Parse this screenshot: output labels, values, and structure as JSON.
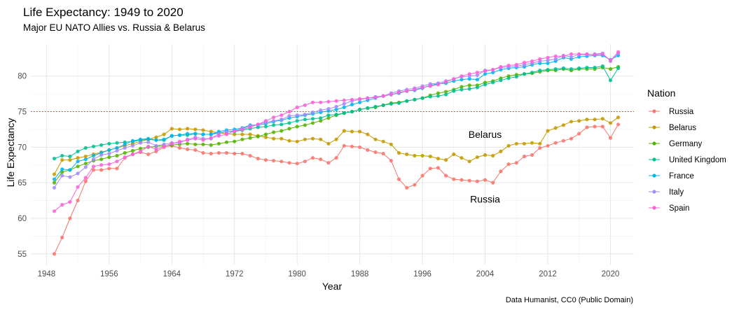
{
  "chart_data": {
    "type": "line",
    "title": "Life Expectancy: 1949 to 2020",
    "subtitle": "Major EU NATO Allies vs. Russia & Belarus",
    "xlabel": "Year",
    "ylabel": "Life Expectancy",
    "caption": "Data Humanist, CC0 (Public Domain)",
    "xlim": [
      1946,
      2023
    ],
    "ylim": [
      53.5,
      84.5
    ],
    "x_ticks": [
      1948,
      1956,
      1964,
      1972,
      1980,
      1988,
      1996,
      2004,
      2012,
      2020
    ],
    "y_ticks": [
      55,
      60,
      65,
      70,
      75,
      80
    ],
    "reference_line": {
      "y": 75,
      "style": "dotted",
      "color": "#c0392b"
    },
    "grid": true,
    "legend": {
      "title": "Nation",
      "placement": "right"
    },
    "annotations": [
      {
        "text": "Belarus",
        "x": 2004,
        "y": 71.8
      },
      {
        "text": "Russia",
        "x": 2004,
        "y": 62.7
      }
    ],
    "x": [
      1949,
      1950,
      1951,
      1952,
      1953,
      1954,
      1955,
      1956,
      1957,
      1958,
      1959,
      1960,
      1961,
      1962,
      1963,
      1964,
      1965,
      1966,
      1967,
      1968,
      1969,
      1970,
      1971,
      1972,
      1973,
      1974,
      1975,
      1976,
      1977,
      1978,
      1979,
      1980,
      1981,
      1982,
      1983,
      1984,
      1985,
      1986,
      1987,
      1988,
      1989,
      1990,
      1991,
      1992,
      1993,
      1994,
      1995,
      1996,
      1997,
      1998,
      1999,
      2000,
      2001,
      2002,
      2003,
      2004,
      2005,
      2006,
      2007,
      2008,
      2009,
      2010,
      2011,
      2012,
      2013,
      2014,
      2015,
      2016,
      2017,
      2018,
      2019,
      2020,
      2021
    ],
    "series": [
      {
        "name": "Russia",
        "color": "#F8766D",
        "values": [
          55.0,
          57.3,
          60.0,
          62.5,
          65.2,
          66.8,
          66.8,
          67.0,
          67.0,
          68.5,
          69.0,
          69.3,
          69.0,
          69.4,
          70.0,
          70.2,
          69.9,
          69.7,
          69.6,
          69.2,
          69.1,
          69.2,
          69.2,
          69.1,
          69.1,
          68.8,
          68.4,
          68.2,
          68.1,
          68.0,
          67.8,
          67.7,
          68.0,
          68.5,
          68.3,
          67.8,
          68.5,
          70.2,
          70.1,
          70.0,
          69.6,
          69.3,
          69.1,
          68.1,
          65.5,
          64.3,
          64.7,
          66.0,
          67.0,
          67.1,
          66.0,
          65.5,
          65.4,
          65.3,
          65.2,
          65.4,
          65.0,
          66.6,
          67.6,
          67.8,
          68.7,
          68.9,
          69.9,
          70.2,
          70.6,
          70.9,
          71.2,
          71.9,
          72.8,
          72.9,
          72.9,
          71.3,
          73.2
        ]
      },
      {
        "name": "Belarus",
        "color": "#C49A00",
        "values": [
          66.2,
          68.2,
          68.2,
          68.5,
          68.7,
          69.0,
          69.3,
          69.6,
          69.9,
          70.2,
          70.5,
          70.8,
          71.1,
          71.4,
          71.8,
          72.6,
          72.5,
          72.6,
          72.5,
          72.4,
          72.2,
          72.0,
          71.9,
          71.8,
          71.8,
          71.8,
          71.6,
          71.4,
          71.2,
          71.2,
          70.9,
          70.8,
          71.1,
          71.2,
          71.1,
          70.5,
          71.1,
          72.3,
          72.2,
          72.2,
          71.8,
          71.1,
          70.8,
          70.4,
          69.2,
          69.0,
          68.8,
          68.8,
          68.7,
          68.4,
          68.2,
          69.0,
          68.5,
          68.0,
          68.6,
          68.9,
          68.8,
          69.4,
          70.2,
          70.5,
          70.5,
          70.6,
          70.5,
          72.3,
          72.7,
          73.1,
          73.6,
          73.7,
          73.9,
          73.9,
          74.0,
          73.4,
          74.2
        ]
      },
      {
        "name": "Germany",
        "color": "#53B400",
        "values": [
          65.0,
          66.5,
          66.8,
          67.3,
          67.7,
          68.1,
          68.3,
          68.6,
          68.8,
          69.2,
          69.5,
          69.8,
          70.0,
          70.1,
          70.2,
          70.3,
          70.4,
          70.5,
          70.4,
          70.4,
          70.3,
          70.5,
          70.7,
          70.8,
          71.1,
          71.3,
          71.5,
          71.8,
          72.1,
          72.3,
          72.6,
          72.9,
          73.1,
          73.4,
          73.7,
          74.1,
          74.5,
          74.8,
          75.0,
          75.3,
          75.5,
          75.6,
          75.9,
          76.2,
          76.3,
          76.5,
          76.7,
          76.9,
          77.3,
          77.6,
          77.8,
          78.1,
          78.5,
          78.7,
          78.7,
          79.1,
          79.3,
          79.7,
          80.0,
          80.2,
          80.3,
          80.4,
          80.6,
          80.8,
          80.8,
          81.0,
          80.8,
          81.0,
          81.0,
          81.0,
          81.2,
          81.0,
          81.3
        ]
      },
      {
        "name": "United Kingdom",
        "color": "#00C094",
        "values": [
          68.4,
          68.8,
          68.7,
          69.4,
          69.9,
          70.1,
          70.3,
          70.5,
          70.6,
          70.7,
          70.8,
          71.0,
          71.1,
          71.0,
          71.0,
          71.6,
          71.7,
          71.7,
          71.9,
          71.8,
          71.8,
          72.0,
          72.2,
          72.2,
          72.4,
          72.6,
          72.8,
          72.9,
          73.1,
          73.2,
          73.4,
          73.7,
          73.9,
          74.0,
          74.1,
          74.5,
          74.6,
          74.8,
          75.0,
          75.3,
          75.5,
          75.7,
          75.9,
          76.1,
          76.2,
          76.5,
          76.7,
          76.9,
          77.1,
          77.2,
          77.4,
          77.9,
          78.1,
          78.2,
          78.4,
          78.8,
          79.1,
          79.4,
          79.7,
          79.9,
          80.3,
          80.5,
          80.8,
          80.9,
          81.0,
          81.1,
          81.0,
          81.1,
          81.2,
          81.2,
          81.4,
          79.4,
          81.1
        ]
      },
      {
        "name": "France",
        "color": "#00B6EB",
        "values": [
          65.5,
          66.9,
          66.8,
          68.0,
          68.3,
          68.8,
          69.2,
          69.6,
          69.9,
          70.4,
          70.9,
          71.1,
          71.2,
          71.0,
          71.1,
          71.6,
          71.7,
          71.9,
          71.9,
          71.8,
          71.8,
          72.2,
          72.4,
          72.5,
          72.7,
          73.1,
          73.1,
          73.3,
          73.6,
          73.8,
          74.1,
          74.3,
          74.5,
          74.7,
          74.9,
          75.1,
          75.3,
          75.6,
          76.0,
          76.3,
          76.6,
          76.9,
          77.2,
          77.4,
          77.6,
          77.9,
          78.0,
          78.3,
          78.7,
          78.9,
          79.0,
          79.3,
          79.5,
          79.6,
          79.5,
          80.3,
          80.5,
          80.9,
          81.1,
          81.2,
          81.3,
          81.6,
          81.8,
          81.8,
          82.1,
          82.6,
          82.4,
          82.7,
          82.8,
          82.9,
          82.9,
          82.3,
          82.9
        ]
      },
      {
        "name": "Italy",
        "color": "#A58AFF",
        "values": [
          64.3,
          66.0,
          65.8,
          66.3,
          67.2,
          68.3,
          68.9,
          69.1,
          69.5,
          69.9,
          70.2,
          70.6,
          70.7,
          70.2,
          70.4,
          70.6,
          70.6,
          71.1,
          71.4,
          71.2,
          71.2,
          71.9,
          72.2,
          72.3,
          72.6,
          73.0,
          73.2,
          73.5,
          73.7,
          73.9,
          74.4,
          74.5,
          74.6,
          74.9,
          75.2,
          75.4,
          75.7,
          76.1,
          76.5,
          76.7,
          76.9,
          77.1,
          77.2,
          77.6,
          77.9,
          78.1,
          78.3,
          78.6,
          78.9,
          79.0,
          79.3,
          79.6,
          79.9,
          80.0,
          80.1,
          80.8,
          80.9,
          81.2,
          81.3,
          81.4,
          81.6,
          81.8,
          82.1,
          82.2,
          82.4,
          82.9,
          82.7,
          83.0,
          83.0,
          83.1,
          83.2,
          82.1,
          83.2
        ]
      },
      {
        "name": "Spain",
        "color": "#FB61D7",
        "values": [
          61.0,
          61.9,
          62.3,
          64.4,
          65.7,
          67.3,
          67.5,
          67.6,
          68.0,
          68.6,
          69.0,
          69.4,
          70.1,
          69.7,
          70.1,
          70.5,
          70.8,
          71.0,
          71.2,
          71.0,
          71.3,
          71.6,
          71.8,
          72.3,
          72.5,
          72.8,
          73.2,
          73.7,
          74.2,
          74.5,
          75.0,
          75.6,
          75.9,
          76.3,
          76.3,
          76.4,
          76.5,
          76.6,
          76.7,
          76.8,
          76.9,
          77.0,
          77.2,
          77.4,
          77.7,
          77.9,
          78.1,
          78.4,
          78.6,
          78.8,
          79.2,
          79.6,
          80.0,
          80.3,
          80.5,
          80.7,
          80.9,
          81.3,
          81.5,
          81.6,
          81.9,
          82.1,
          82.4,
          82.6,
          82.8,
          82.8,
          83.1,
          83.1,
          83.1,
          83.0,
          83.1,
          82.2,
          83.4
        ]
      }
    ]
  }
}
